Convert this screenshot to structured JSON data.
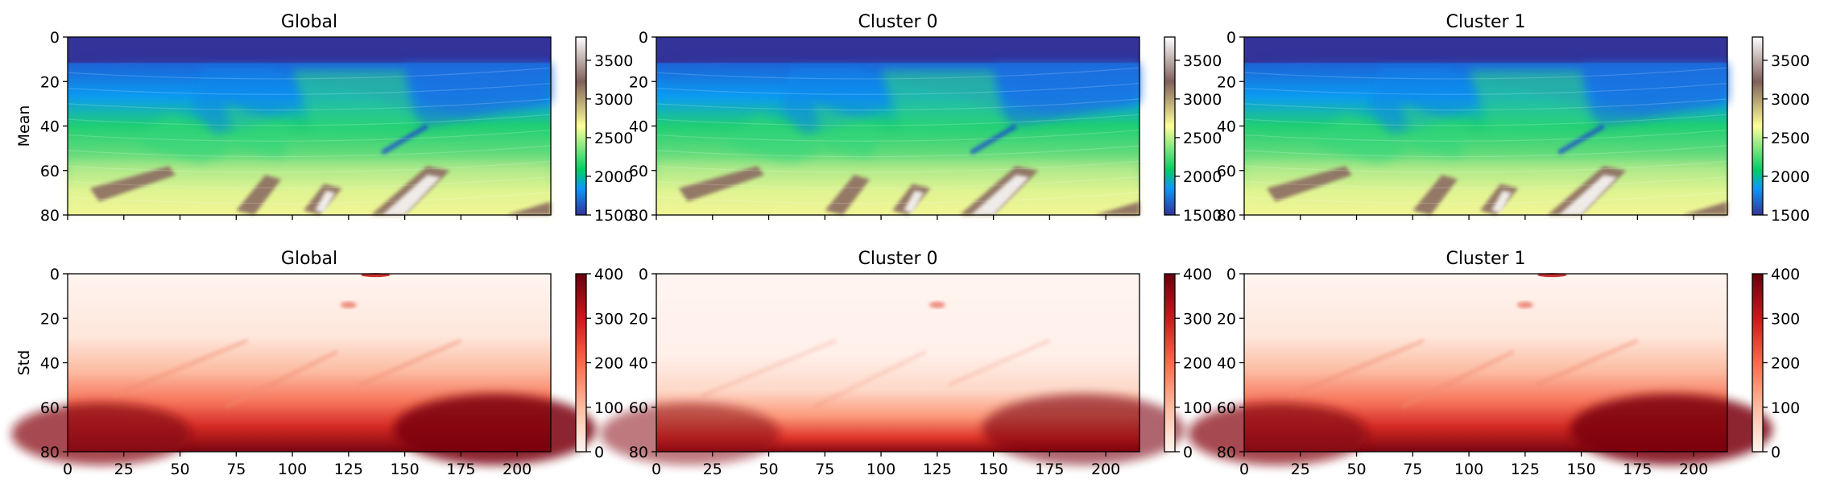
{
  "chart_data": [
    {
      "type": "heatmap",
      "title": "Global",
      "ylabel": "Mean",
      "colormap": "terrain",
      "xlim": [
        0,
        215
      ],
      "ylim": [
        80,
        0
      ],
      "xticks": [
        "0",
        "25",
        "50",
        "75",
        "100",
        "125",
        "150",
        "175",
        "200"
      ],
      "x_ticklabels_visible": false,
      "yticks": [
        "0",
        "20",
        "40",
        "60",
        "80"
      ],
      "colorbar": {
        "min": 1500,
        "max": 3800,
        "ticks": [
          "1500",
          "2000",
          "2500",
          "3000",
          "3500"
        ]
      }
    },
    {
      "type": "heatmap",
      "title": "Cluster 0",
      "colormap": "terrain",
      "xlim": [
        0,
        215
      ],
      "ylim": [
        80,
        0
      ],
      "xticks": [
        "0",
        "25",
        "50",
        "75",
        "100",
        "125",
        "150",
        "175",
        "200"
      ],
      "x_ticklabels_visible": false,
      "yticks": [
        "0",
        "20",
        "40",
        "60",
        "80"
      ],
      "colorbar": {
        "min": 1500,
        "max": 3800,
        "ticks": [
          "1500",
          "2000",
          "2500",
          "3000",
          "3500"
        ]
      }
    },
    {
      "type": "heatmap",
      "title": "Cluster 1",
      "colormap": "terrain",
      "xlim": [
        0,
        215
      ],
      "ylim": [
        80,
        0
      ],
      "xticks": [
        "0",
        "25",
        "50",
        "75",
        "100",
        "125",
        "150",
        "175",
        "200"
      ],
      "x_ticklabels_visible": false,
      "yticks": [
        "0",
        "20",
        "40",
        "60",
        "80"
      ],
      "colorbar": {
        "min": 1500,
        "max": 3800,
        "ticks": [
          "1500",
          "2000",
          "2500",
          "3000",
          "3500"
        ]
      }
    },
    {
      "type": "heatmap",
      "title": "Global",
      "ylabel": "Std",
      "colormap": "Reds",
      "xlim": [
        0,
        215
      ],
      "ylim": [
        80,
        0
      ],
      "xticks": [
        "0",
        "25",
        "50",
        "75",
        "100",
        "125",
        "150",
        "175",
        "200"
      ],
      "x_ticklabels_visible": true,
      "yticks": [
        "0",
        "20",
        "40",
        "60",
        "80"
      ],
      "colorbar": {
        "min": 0,
        "max": 400,
        "ticks": [
          "0",
          "100",
          "200",
          "300",
          "400"
        ]
      }
    },
    {
      "type": "heatmap",
      "title": "Cluster 0",
      "colormap": "Reds",
      "xlim": [
        0,
        215
      ],
      "ylim": [
        80,
        0
      ],
      "xticks": [
        "0",
        "25",
        "50",
        "75",
        "100",
        "125",
        "150",
        "175",
        "200"
      ],
      "x_ticklabels_visible": true,
      "yticks": [
        "0",
        "20",
        "40",
        "60",
        "80"
      ],
      "colorbar": {
        "min": 0,
        "max": 400,
        "ticks": [
          "0",
          "100",
          "200",
          "300",
          "400"
        ]
      }
    },
    {
      "type": "heatmap",
      "title": "Cluster 1",
      "colormap": "Reds",
      "xlim": [
        0,
        215
      ],
      "ylim": [
        80,
        0
      ],
      "xticks": [
        "0",
        "25",
        "50",
        "75",
        "100",
        "125",
        "150",
        "175",
        "200"
      ],
      "x_ticklabels_visible": true,
      "yticks": [
        "0",
        "20",
        "40",
        "60",
        "80"
      ],
      "colorbar": {
        "min": 0,
        "max": 400,
        "ticks": [
          "0",
          "100",
          "200",
          "300",
          "400"
        ]
      }
    }
  ]
}
